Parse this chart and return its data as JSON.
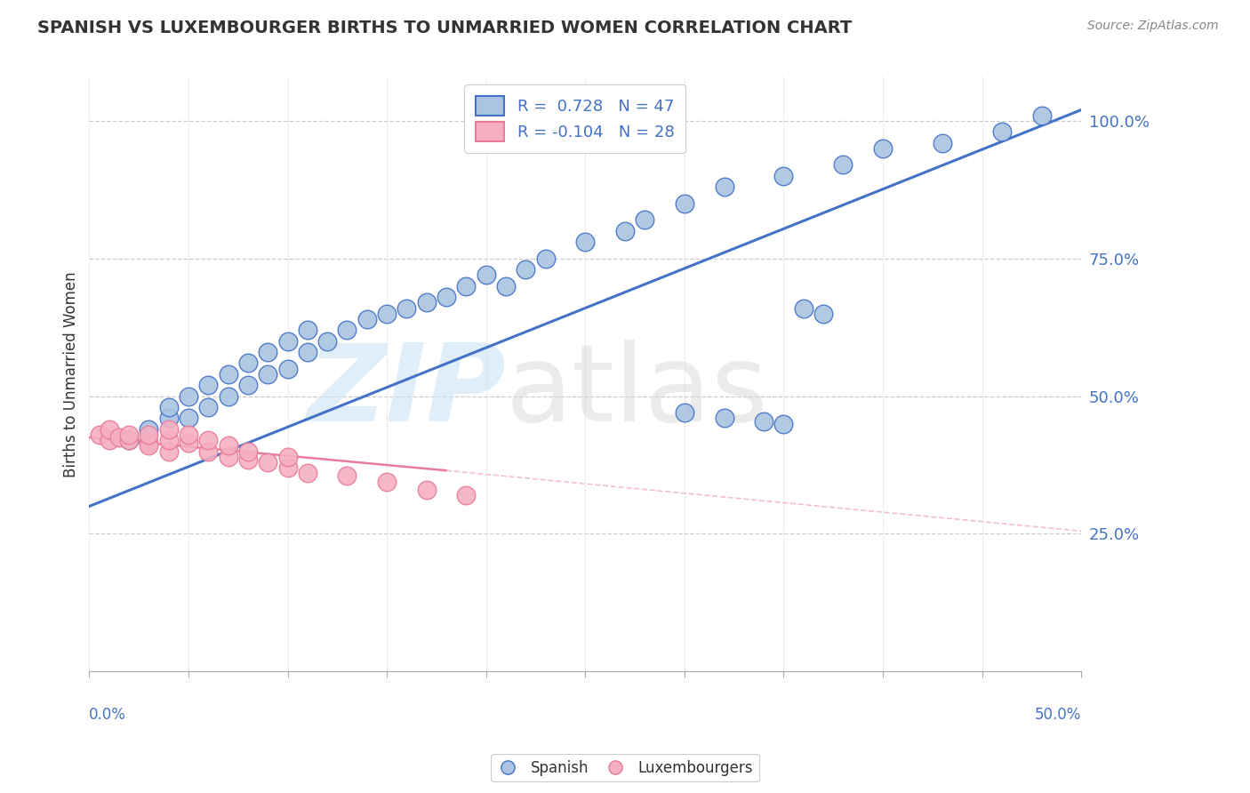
{
  "title": "SPANISH VS LUXEMBOURGER BIRTHS TO UNMARRIED WOMEN CORRELATION CHART",
  "source": "Source: ZipAtlas.com",
  "ylabel": "Births to Unmarried Women",
  "x_min": 0.0,
  "x_max": 0.5,
  "y_min": 0.0,
  "y_max": 1.08,
  "right_yticks": [
    0.25,
    0.5,
    0.75,
    1.0
  ],
  "right_yticklabels": [
    "25.0%",
    "50.0%",
    "75.0%",
    "100.0%"
  ],
  "blue_R": 0.728,
  "blue_N": 47,
  "pink_R": -0.104,
  "pink_N": 28,
  "blue_color": "#aac4e2",
  "pink_color": "#f5afc0",
  "blue_line_color": "#4472c4",
  "pink_line_color": "#e87a9a",
  "pink_line_dash_color": "#f5c0ce",
  "legend_label_blue": "Spanish",
  "legend_label_pink": "Luxembourgers",
  "blue_x": [
    0.02,
    0.03,
    0.04,
    0.04,
    0.05,
    0.05,
    0.06,
    0.06,
    0.07,
    0.07,
    0.08,
    0.08,
    0.09,
    0.09,
    0.1,
    0.1,
    0.11,
    0.11,
    0.12,
    0.13,
    0.14,
    0.15,
    0.16,
    0.17,
    0.18,
    0.19,
    0.2,
    0.21,
    0.22,
    0.23,
    0.25,
    0.27,
    0.28,
    0.3,
    0.32,
    0.35,
    0.38,
    0.4,
    0.43,
    0.46,
    0.48,
    0.3,
    0.32,
    0.34,
    0.35,
    0.36,
    0.37
  ],
  "blue_y": [
    0.42,
    0.44,
    0.46,
    0.48,
    0.46,
    0.5,
    0.48,
    0.52,
    0.5,
    0.54,
    0.52,
    0.56,
    0.54,
    0.58,
    0.55,
    0.6,
    0.58,
    0.62,
    0.6,
    0.62,
    0.64,
    0.65,
    0.66,
    0.67,
    0.68,
    0.7,
    0.72,
    0.7,
    0.73,
    0.75,
    0.78,
    0.8,
    0.82,
    0.85,
    0.88,
    0.9,
    0.92,
    0.95,
    0.96,
    0.98,
    1.01,
    0.47,
    0.46,
    0.455,
    0.45,
    0.66,
    0.65
  ],
  "blue_line_x0": 0.0,
  "blue_line_y0": 0.3,
  "blue_line_x1": 0.5,
  "blue_line_y1": 1.02,
  "pink_line_solid_x0": 0.0,
  "pink_line_solid_y0": 0.425,
  "pink_line_solid_x1": 0.18,
  "pink_line_solid_y1": 0.365,
  "pink_line_dash_x0": 0.18,
  "pink_line_dash_y0": 0.365,
  "pink_line_dash_x1": 0.5,
  "pink_line_dash_y1": 0.255,
  "pink_x": [
    0.005,
    0.01,
    0.01,
    0.015,
    0.02,
    0.02,
    0.03,
    0.03,
    0.03,
    0.04,
    0.04,
    0.04,
    0.05,
    0.05,
    0.06,
    0.06,
    0.07,
    0.07,
    0.08,
    0.08,
    0.09,
    0.1,
    0.1,
    0.11,
    0.13,
    0.15,
    0.17,
    0.19
  ],
  "pink_y": [
    0.43,
    0.42,
    0.44,
    0.425,
    0.42,
    0.43,
    0.415,
    0.41,
    0.43,
    0.4,
    0.42,
    0.44,
    0.415,
    0.43,
    0.4,
    0.42,
    0.39,
    0.41,
    0.385,
    0.4,
    0.38,
    0.37,
    0.39,
    0.36,
    0.355,
    0.345,
    0.33,
    0.32
  ]
}
